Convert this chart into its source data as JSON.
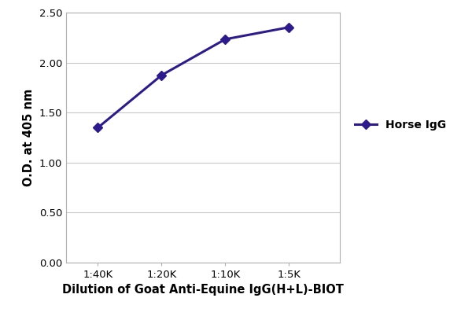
{
  "x_positions": [
    1,
    2,
    3,
    4
  ],
  "x_labels": [
    "1:40K",
    "1:20K",
    "1:10K",
    "1:5K"
  ],
  "y_values": [
    1.35,
    1.875,
    2.235,
    2.355
  ],
  "y_lim": [
    0.0,
    2.5
  ],
  "y_ticks": [
    0.0,
    0.5,
    1.0,
    1.5,
    2.0,
    2.5
  ],
  "line_color": "#2d1b8e",
  "marker": "D",
  "marker_size": 6,
  "line_width": 2.2,
  "xlabel": "Dilution of Goat Anti-Equine IgG(H+L)-BIOT",
  "ylabel": "O.D. at 405 nm",
  "legend_label": "Horse IgG",
  "grid_color": "#c8c8c8",
  "spine_color": "#b0b0b0",
  "background_color": "#ffffff",
  "xlabel_fontsize": 10.5,
  "ylabel_fontsize": 10.5,
  "tick_fontsize": 9.5,
  "legend_fontsize": 10,
  "x_lim": [
    0.5,
    4.8
  ]
}
